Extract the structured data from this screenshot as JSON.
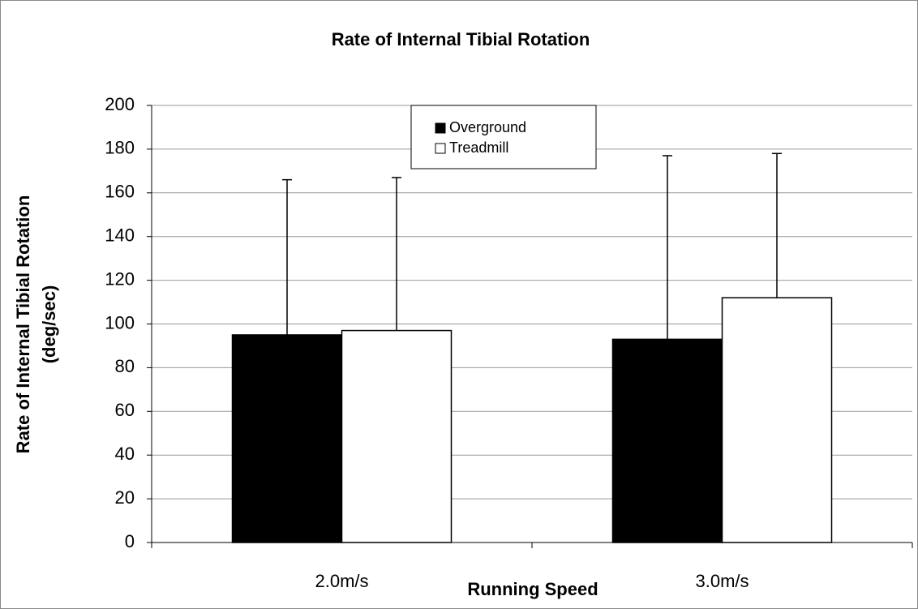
{
  "chart_data": {
    "type": "bar",
    "title": "Rate of Internal Tibial Rotation",
    "xlabel": "Running Speed",
    "ylabel": [
      "Rate of Internal Tibial Rotation",
      "(deg/sec)"
    ],
    "categories": [
      "2.0m/s",
      "3.0m/s"
    ],
    "series": [
      {
        "name": "Overground",
        "color": "#000000",
        "values": [
          95,
          93
        ],
        "errors": [
          71,
          84
        ]
      },
      {
        "name": "Treadmill",
        "color": "#ffffff",
        "values": [
          97,
          112
        ],
        "errors": [
          70,
          66
        ]
      }
    ],
    "ylim": [
      0,
      200
    ],
    "yticks": [
      0,
      20,
      40,
      60,
      80,
      100,
      120,
      140,
      160,
      180,
      200
    ],
    "grid": true,
    "legend": "top"
  }
}
